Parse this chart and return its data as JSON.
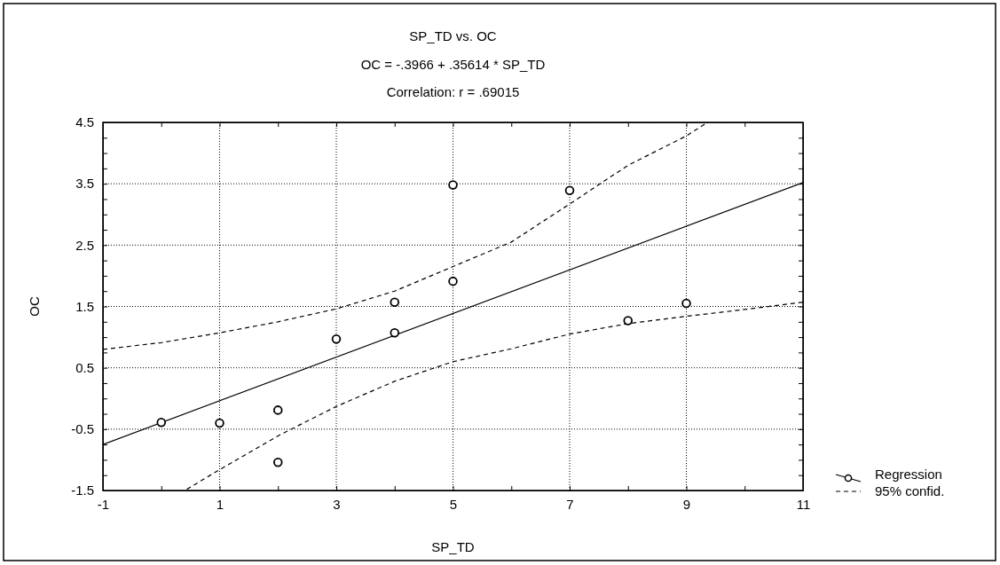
{
  "chart_data": {
    "type": "scatter",
    "title": "SP_TD vs. OC",
    "subtitle": "OC = -.3966 + .35614 * SP_TD",
    "annotations": [
      "Correlation: r = .69015"
    ],
    "xlabel": "SP_TD",
    "ylabel": "OC",
    "xlim": [
      -1,
      11
    ],
    "ylim": [
      -1.5,
      4.5
    ],
    "xticks": [
      -1,
      {
        "value": 0,
        "label": null
      },
      1,
      {
        "value": 2,
        "label": null
      },
      3,
      {
        "value": 4,
        "label": null
      },
      5,
      {
        "value": 6,
        "label": null
      },
      7,
      {
        "value": 8,
        "label": null
      },
      9,
      {
        "value": 10,
        "label": null
      },
      11
    ],
    "yticks": [
      -1.5,
      {
        "value": -1.25,
        "label": null
      },
      {
        "value": -1,
        "label": null
      },
      {
        "value": -0.75,
        "label": null
      },
      -0.5,
      {
        "value": -0.25,
        "label": null
      },
      {
        "value": 0,
        "label": null
      },
      {
        "value": 0.25,
        "label": null
      },
      0.5,
      {
        "value": 0.75,
        "label": null
      },
      {
        "value": 1,
        "label": null
      },
      {
        "value": 1.25,
        "label": null
      },
      1.5,
      {
        "value": 1.75,
        "label": null
      },
      {
        "value": 2,
        "label": null
      },
      {
        "value": 2.25,
        "label": null
      },
      2.5,
      {
        "value": 2.75,
        "label": null
      },
      {
        "value": 3,
        "label": null
      },
      {
        "value": 3.25,
        "label": null
      },
      3.5,
      {
        "value": 3.75,
        "label": null
      },
      {
        "value": 4,
        "label": null
      },
      {
        "value": 4.25,
        "label": null
      },
      4.5
    ],
    "grid": true,
    "legend": "right",
    "series": [
      {
        "marker": "circle",
        "color": "#000000",
        "x": [
          0,
          1,
          2,
          2,
          3,
          4,
          4,
          5,
          5,
          7,
          8,
          9
        ],
        "values": [
          -0.39,
          -0.4,
          -0.19,
          -1.04,
          0.97,
          1.07,
          1.57,
          1.91,
          3.48,
          3.39,
          1.27,
          1.55
        ]
      },
      {
        "type": "line",
        "name": "Regression",
        "color": "#000000",
        "line_style": "solid",
        "marker": "none",
        "x": [
          -1,
          11
        ],
        "values": [
          -0.75,
          3.52
        ]
      },
      {
        "type": "line",
        "name": "95% confid.",
        "color": "#000000",
        "line_style": "dashed",
        "marker": "none",
        "x": [
          -1,
          0,
          1,
          2,
          3,
          4,
          5,
          6,
          7,
          8,
          9,
          9.33
        ],
        "values": [
          0.8,
          0.91,
          1.07,
          1.25,
          1.46,
          1.75,
          2.15,
          2.55,
          3.17,
          3.8,
          4.28,
          4.48
        ]
      },
      {
        "type": "line",
        "color": "#000000",
        "line_style": "dashed",
        "marker": "none",
        "x": [
          0.44,
          1,
          2,
          3,
          4,
          5,
          6,
          7,
          8,
          9,
          10,
          11
        ],
        "values": [
          -1.48,
          -1.16,
          -0.61,
          -0.13,
          0.28,
          0.6,
          0.81,
          1.05,
          1.22,
          1.34,
          1.45,
          1.57
        ]
      }
    ]
  }
}
